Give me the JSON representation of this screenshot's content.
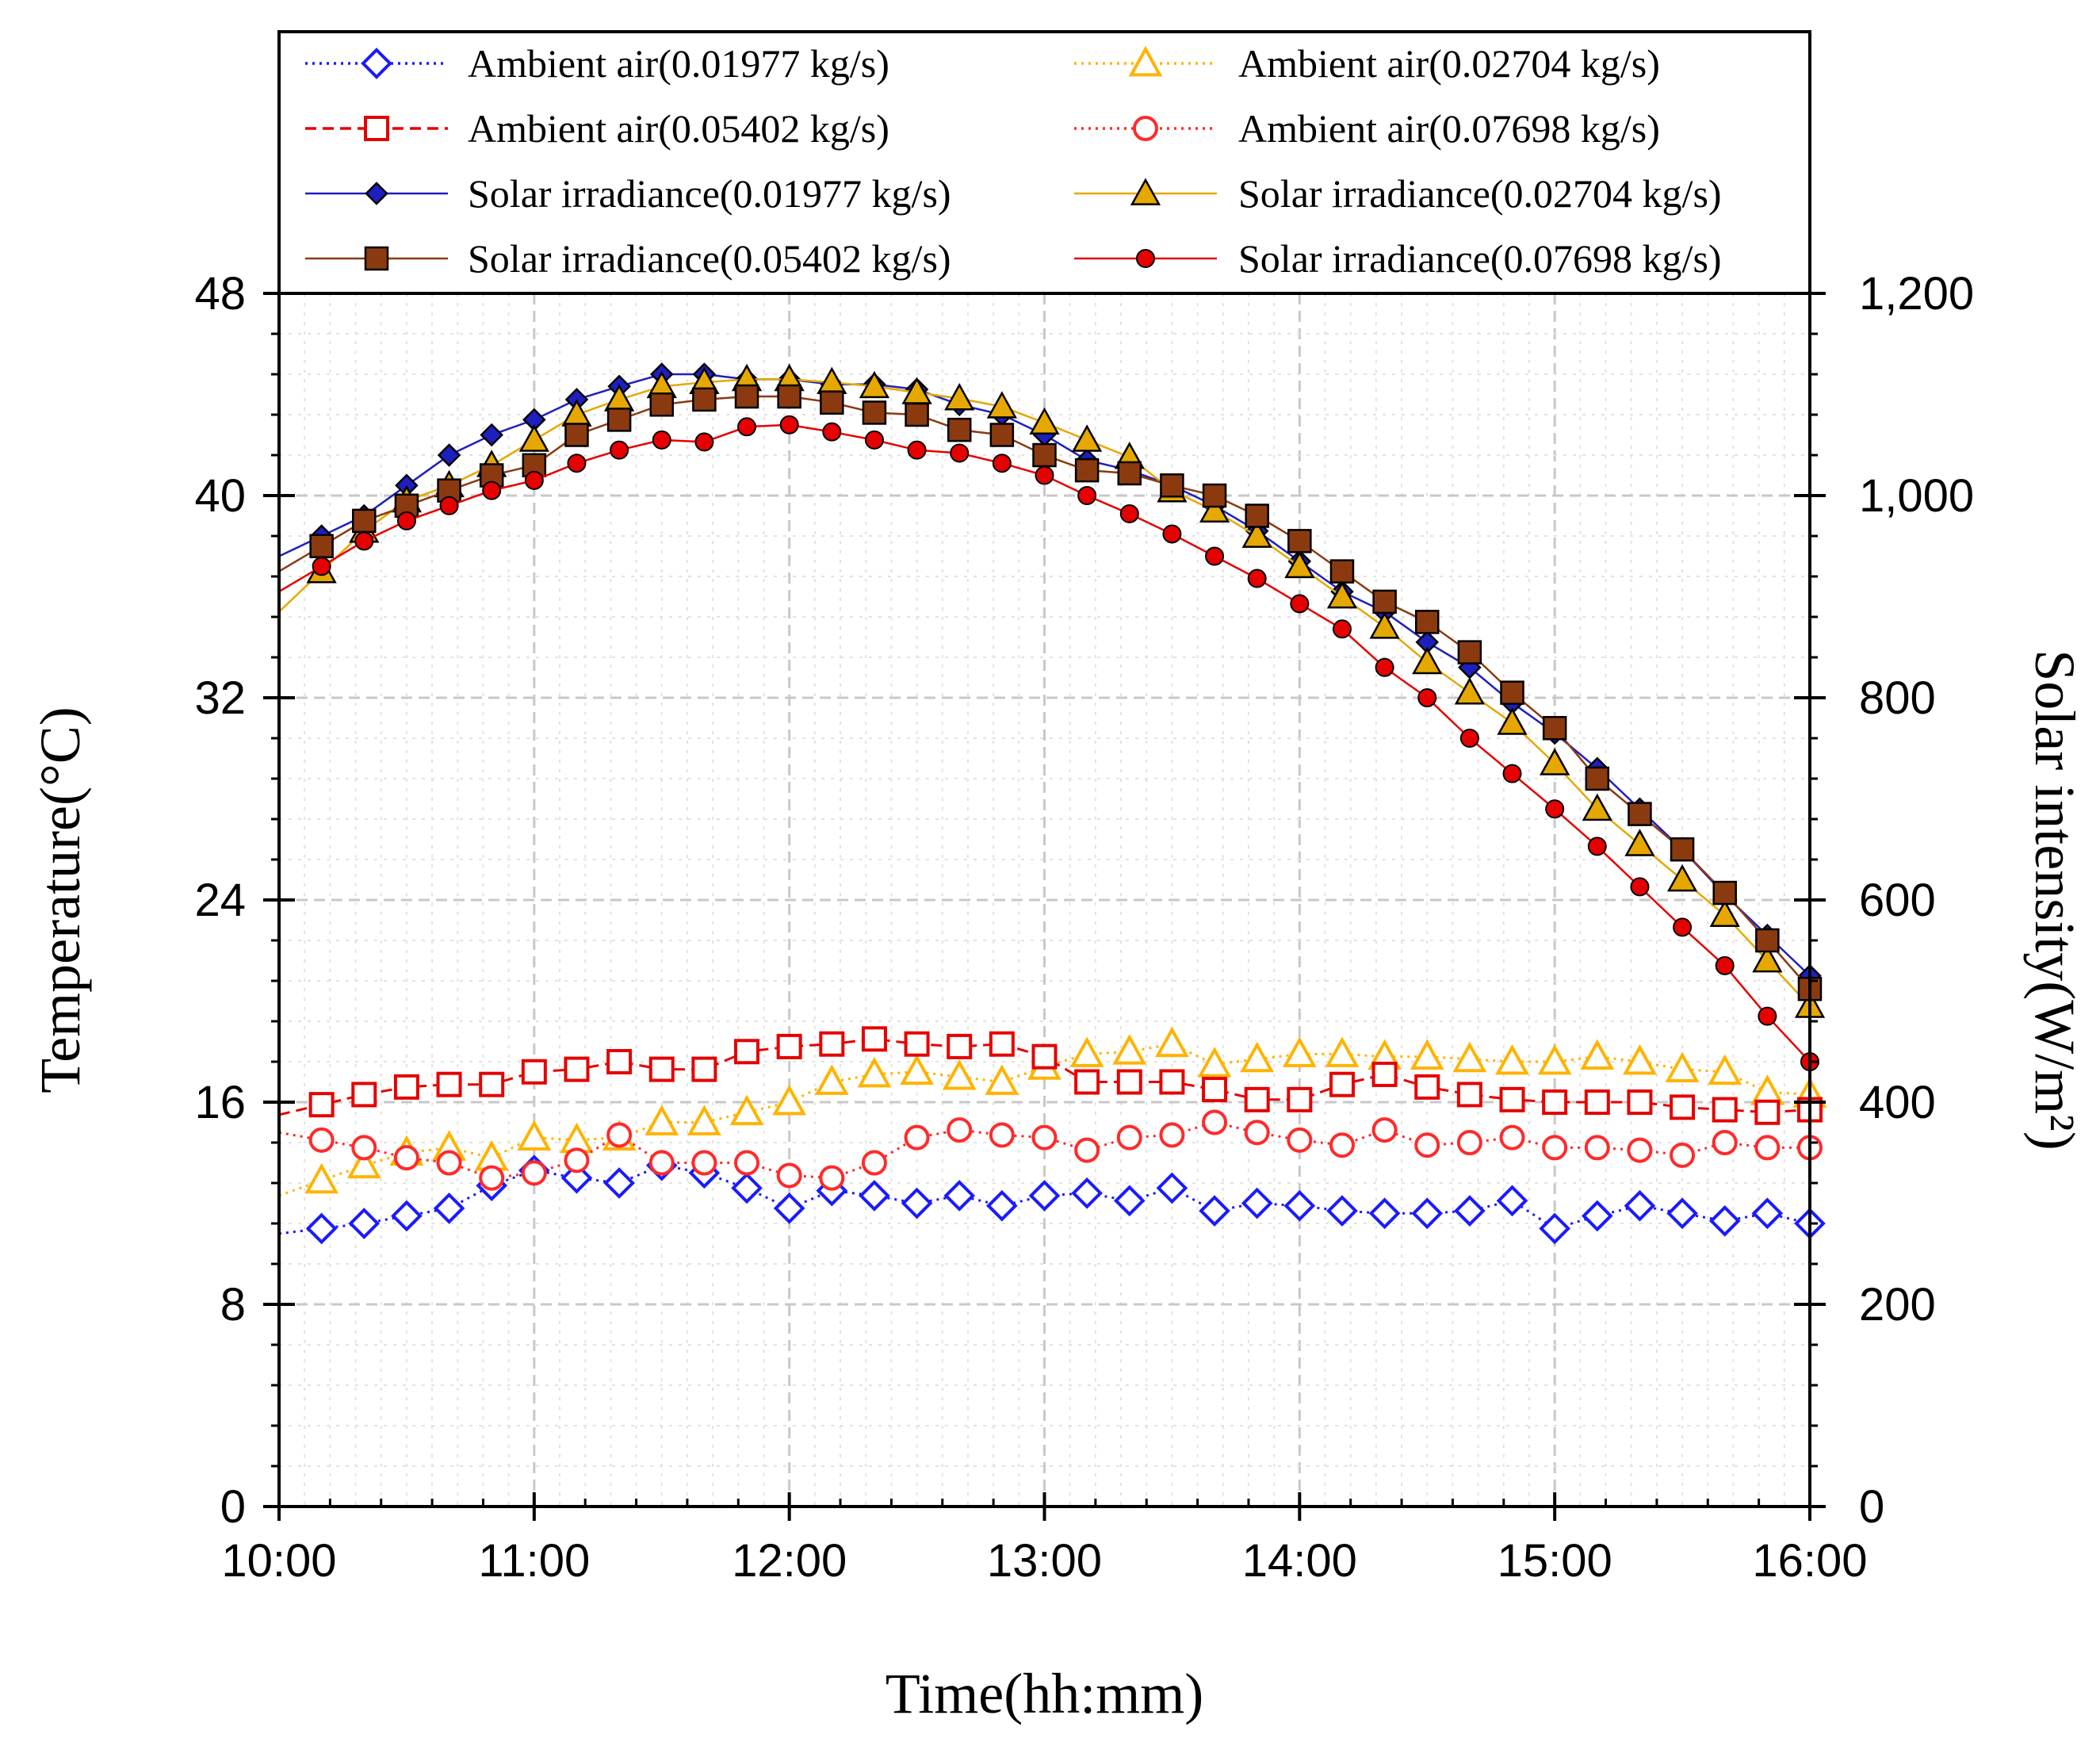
{
  "chart_data": {
    "type": "line",
    "xlabel": "Time(hh:mm)",
    "ylabel_left": "Temperature(°C)",
    "ylabel_right": "Solar intensity(W/m²)",
    "x_ticks": [
      "10:00",
      "11:00",
      "12:00",
      "13:00",
      "14:00",
      "15:00",
      "16:00"
    ],
    "y_ticks_left": [
      "0",
      "8",
      "16",
      "24",
      "32",
      "40",
      "48"
    ],
    "y_ticks_right": [
      "0",
      "200",
      "400",
      "600",
      "800",
      "1,000",
      "1,200"
    ],
    "xlim": [
      "10:00",
      "16:00"
    ],
    "ylim_left": [
      0,
      48
    ],
    "ylim_right": [
      0,
      1200
    ],
    "grid": true,
    "legend_position": "top",
    "x_times": [
      "10:10",
      "10:20",
      "10:30",
      "10:40",
      "10:50",
      "11:00",
      "11:10",
      "11:20",
      "11:30",
      "11:40",
      "11:50",
      "12:00",
      "12:10",
      "12:20",
      "12:30",
      "12:40",
      "12:50",
      "13:00",
      "13:10",
      "13:20",
      "13:30",
      "13:40",
      "13:50",
      "14:00",
      "14:10",
      "14:20",
      "14:30",
      "14:40",
      "14:50",
      "15:00",
      "15:10",
      "15:20",
      "15:30",
      "15:40",
      "15:50",
      "16:00"
    ],
    "series": [
      {
        "name": "Ambient air(0.01977 kg/s)",
        "axis": "left",
        "color": "#1a1aff",
        "marker": "diamond-open",
        "dash": "dotted",
        "values": [
          11.0,
          11.2,
          11.5,
          11.8,
          12.7,
          13.3,
          13.0,
          12.8,
          13.5,
          13.2,
          12.6,
          11.8,
          12.5,
          12.3,
          12.0,
          12.3,
          11.9,
          12.3,
          12.4,
          12.1,
          12.6,
          11.7,
          12.0,
          11.9,
          11.7,
          11.6,
          11.6,
          11.7,
          12.1,
          11.0,
          11.5,
          11.9,
          11.6,
          11.3,
          11.6,
          11.2
        ]
      },
      {
        "name": "Ambient air(0.02704 kg/s)",
        "axis": "left",
        "color": "#ffb300",
        "marker": "triangle-open",
        "dash": "dotted",
        "values": [
          12.9,
          13.5,
          14.0,
          14.2,
          13.8,
          14.6,
          14.5,
          14.6,
          15.2,
          15.2,
          15.6,
          16.0,
          16.8,
          17.1,
          17.2,
          17.0,
          16.8,
          17.4,
          17.9,
          18.0,
          18.3,
          17.5,
          17.7,
          17.9,
          17.9,
          17.8,
          17.8,
          17.7,
          17.6,
          17.6,
          17.8,
          17.6,
          17.3,
          17.2,
          16.4,
          16.3
        ]
      },
      {
        "name": "Ambient air(0.05402 kg/s)",
        "axis": "left",
        "color": "#e60000",
        "marker": "square-open",
        "dash": "dashed",
        "values": [
          15.9,
          16.3,
          16.6,
          16.7,
          16.7,
          17.2,
          17.3,
          17.6,
          17.3,
          17.3,
          18.0,
          18.2,
          18.3,
          18.5,
          18.3,
          18.2,
          18.3,
          17.8,
          16.8,
          16.8,
          16.8,
          16.5,
          16.1,
          16.1,
          16.7,
          17.1,
          16.6,
          16.3,
          16.1,
          16.0,
          16.0,
          16.0,
          15.8,
          15.7,
          15.6,
          15.7
        ]
      },
      {
        "name": "Ambient air(0.07698 kg/s)",
        "axis": "left",
        "color": "#ff2a2a",
        "marker": "circle-open",
        "dash": "dotted",
        "values": [
          14.5,
          14.2,
          13.8,
          13.6,
          13.0,
          13.2,
          13.7,
          14.7,
          13.6,
          13.6,
          13.6,
          13.1,
          13.0,
          13.6,
          14.6,
          14.9,
          14.7,
          14.6,
          14.1,
          14.6,
          14.7,
          15.2,
          14.8,
          14.5,
          14.3,
          14.9,
          14.3,
          14.4,
          14.6,
          14.2,
          14.2,
          14.1,
          13.9,
          14.4,
          14.2,
          14.2
        ]
      },
      {
        "name": "Solar irradiance(0.01977 kg/s)",
        "axis": "right",
        "color": "#1f1fbf",
        "marker": "diamond-filled",
        "dash": "solid",
        "values": [
          960,
          980,
          1010,
          1040,
          1060,
          1075,
          1095,
          1108,
          1120,
          1120,
          1115,
          1115,
          1110,
          1110,
          1105,
          1090,
          1080,
          1060,
          1035,
          1025,
          1010,
          990,
          965,
          935,
          905,
          885,
          855,
          830,
          795,
          765,
          730,
          690,
          650,
          605,
          565,
          525
        ]
      },
      {
        "name": "Solar irradiance(0.02704 kg/s)",
        "axis": "right",
        "color": "#e6a800",
        "marker": "triangle-filled",
        "dash": "solid",
        "values": [
          925,
          965,
          995,
          1010,
          1030,
          1055,
          1080,
          1095,
          1108,
          1112,
          1115,
          1115,
          1112,
          1108,
          1102,
          1096,
          1088,
          1072,
          1055,
          1038,
          1005,
          985,
          960,
          930,
          900,
          870,
          835,
          805,
          775,
          735,
          690,
          655,
          620,
          585,
          540,
          495
        ]
      },
      {
        "name": "Solar irradiance(0.05402 kg/s)",
        "axis": "right",
        "color": "#8b3a10",
        "marker": "square-filled",
        "dash": "solid",
        "values": [
          950,
          975,
          990,
          1005,
          1020,
          1030,
          1060,
          1075,
          1090,
          1095,
          1098,
          1098,
          1092,
          1082,
          1080,
          1065,
          1060,
          1040,
          1025,
          1022,
          1010,
          1000,
          980,
          955,
          925,
          895,
          875,
          845,
          805,
          770,
          720,
          685,
          650,
          607,
          560,
          512
        ]
      },
      {
        "name": "Solar irradiance(0.07698 kg/s)",
        "axis": "right",
        "color": "#e60000",
        "marker": "circle-filled",
        "dash": "solid",
        "values": [
          930,
          955,
          975,
          990,
          1005,
          1015,
          1032,
          1045,
          1055,
          1053,
          1068,
          1070,
          1063,
          1055,
          1045,
          1042,
          1032,
          1020,
          1000,
          982,
          962,
          940,
          918,
          893,
          868,
          830,
          800,
          760,
          725,
          690,
          653,
          613,
          573,
          535,
          485,
          440
        ]
      }
    ]
  }
}
